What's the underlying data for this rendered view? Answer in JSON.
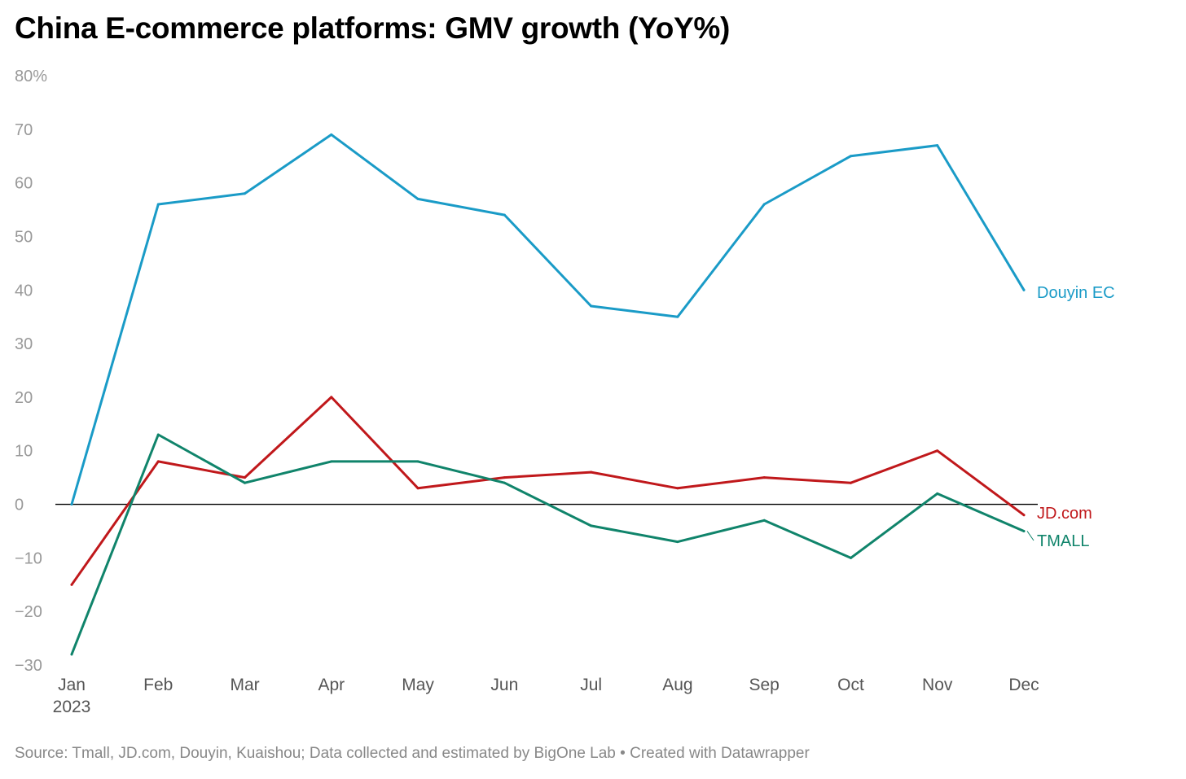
{
  "title": "China E-commerce platforms: GMV growth (YoY%)",
  "footer": {
    "source": "Source: Tmall, JD.com, Douyin, Kuaishou; Data collected and estimated by BigOne Lab",
    "separator": " • ",
    "credit": "Created with Datawrapper"
  },
  "chart_data": {
    "type": "line",
    "title": "China E-commerce platforms: GMV growth (YoY%)",
    "x": [
      "Jan",
      "Feb",
      "Mar",
      "Apr",
      "May",
      "Jun",
      "Jul",
      "Aug",
      "Sep",
      "Oct",
      "Nov",
      "Dec"
    ],
    "x_sublabel": "2023",
    "ylim": [
      -30,
      80
    ],
    "yticks": [
      -30,
      -20,
      -10,
      0,
      10,
      20,
      30,
      40,
      50,
      60,
      70,
      80
    ],
    "ytick_labels": [
      "−30",
      "−20",
      "−10",
      "0",
      "10",
      "20",
      "30",
      "40",
      "50",
      "60",
      "70",
      "80%"
    ],
    "grid": false,
    "zero_line": true,
    "legend": "direct labels at line ends (right)",
    "series": [
      {
        "name": "Douyin EC",
        "color": "#1a9bc7",
        "values": [
          0,
          56,
          58,
          69,
          57,
          54,
          37,
          35,
          56,
          65,
          67,
          40
        ]
      },
      {
        "name": "JD.com",
        "color": "#c0181b",
        "values": [
          -15,
          8,
          5,
          20,
          3,
          5,
          6,
          3,
          5,
          4,
          10,
          -2
        ]
      },
      {
        "name": "TMALL",
        "color": "#10846b",
        "values": [
          -28,
          13,
          4,
          8,
          8,
          4,
          -4,
          -7,
          -3,
          -10,
          2,
          -5
        ]
      }
    ]
  }
}
